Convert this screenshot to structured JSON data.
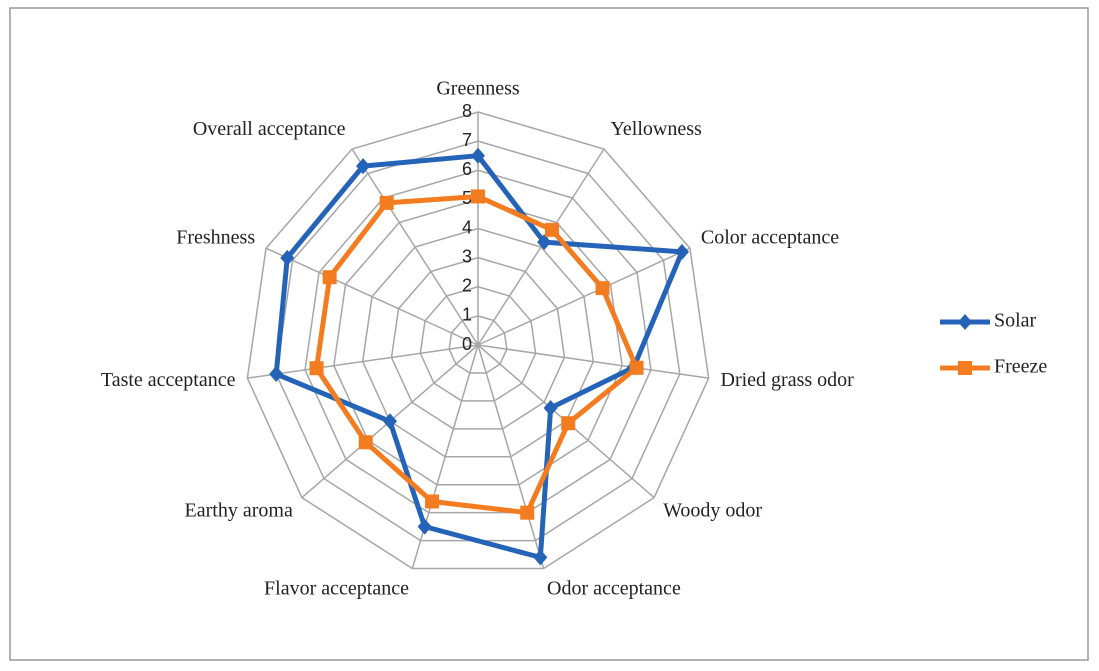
{
  "chart_data": {
    "type": "radar",
    "categories": [
      "Greenness",
      "Yellowness",
      "Color acceptance",
      "Dried grass odor",
      "Woody odor",
      "Odor acceptance",
      "Flavor acceptance",
      "Earthy aroma",
      "Taste acceptance",
      "Freshness",
      "Overall acceptance"
    ],
    "series": [
      {
        "name": "Solar",
        "color": "#2563b8",
        "values": [
          6.5,
          4.2,
          7.7,
          5.4,
          3.3,
          7.6,
          6.5,
          4.0,
          7.0,
          7.2,
          7.3
        ]
      },
      {
        "name": "Freeze",
        "color": "#f47c20",
        "values": [
          5.1,
          4.7,
          4.7,
          5.5,
          4.1,
          6.0,
          5.6,
          5.1,
          5.6,
          5.6,
          5.8
        ]
      }
    ],
    "rlim": [
      0,
      8
    ],
    "rticks": [
      0,
      1,
      2,
      3,
      4,
      5,
      6,
      7,
      8
    ],
    "grid": true,
    "legend": "right"
  }
}
